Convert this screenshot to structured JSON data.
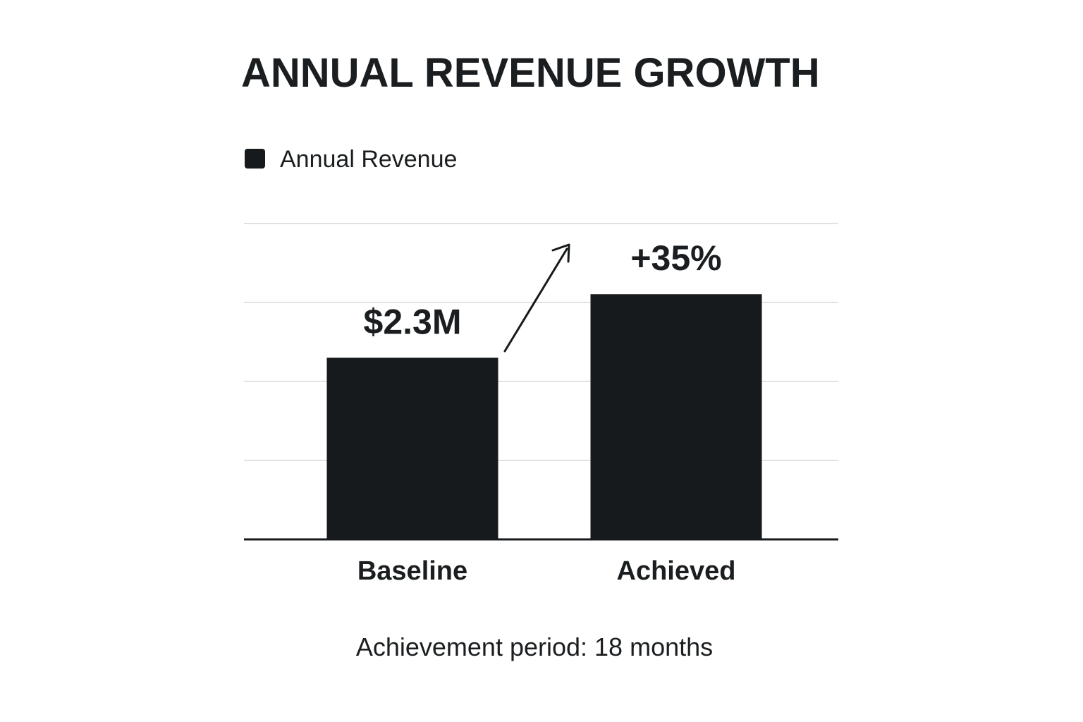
{
  "chart_data": {
    "type": "bar",
    "title": "ANNUAL REVENUE GROWTH",
    "categories": [
      "Baseline",
      "Achieved"
    ],
    "series": [
      {
        "name": "Annual Revenue",
        "values": [
          2.3,
          3.105
        ]
      }
    ],
    "data_labels": [
      "$2.3M",
      "+35%"
    ],
    "ylim": [
      0,
      4.0
    ],
    "grid": true,
    "legend": {
      "position": "top-left",
      "entries": [
        "Annual Revenue"
      ]
    },
    "annotation": {
      "type": "arrow",
      "from": "Baseline",
      "to": "Achieved",
      "text": "+35%"
    },
    "colors": {
      "bar": "#161a1c",
      "grid": "#d9d9d9",
      "axis": "#161a1c"
    },
    "caption": "Achievement period: 18 months"
  }
}
